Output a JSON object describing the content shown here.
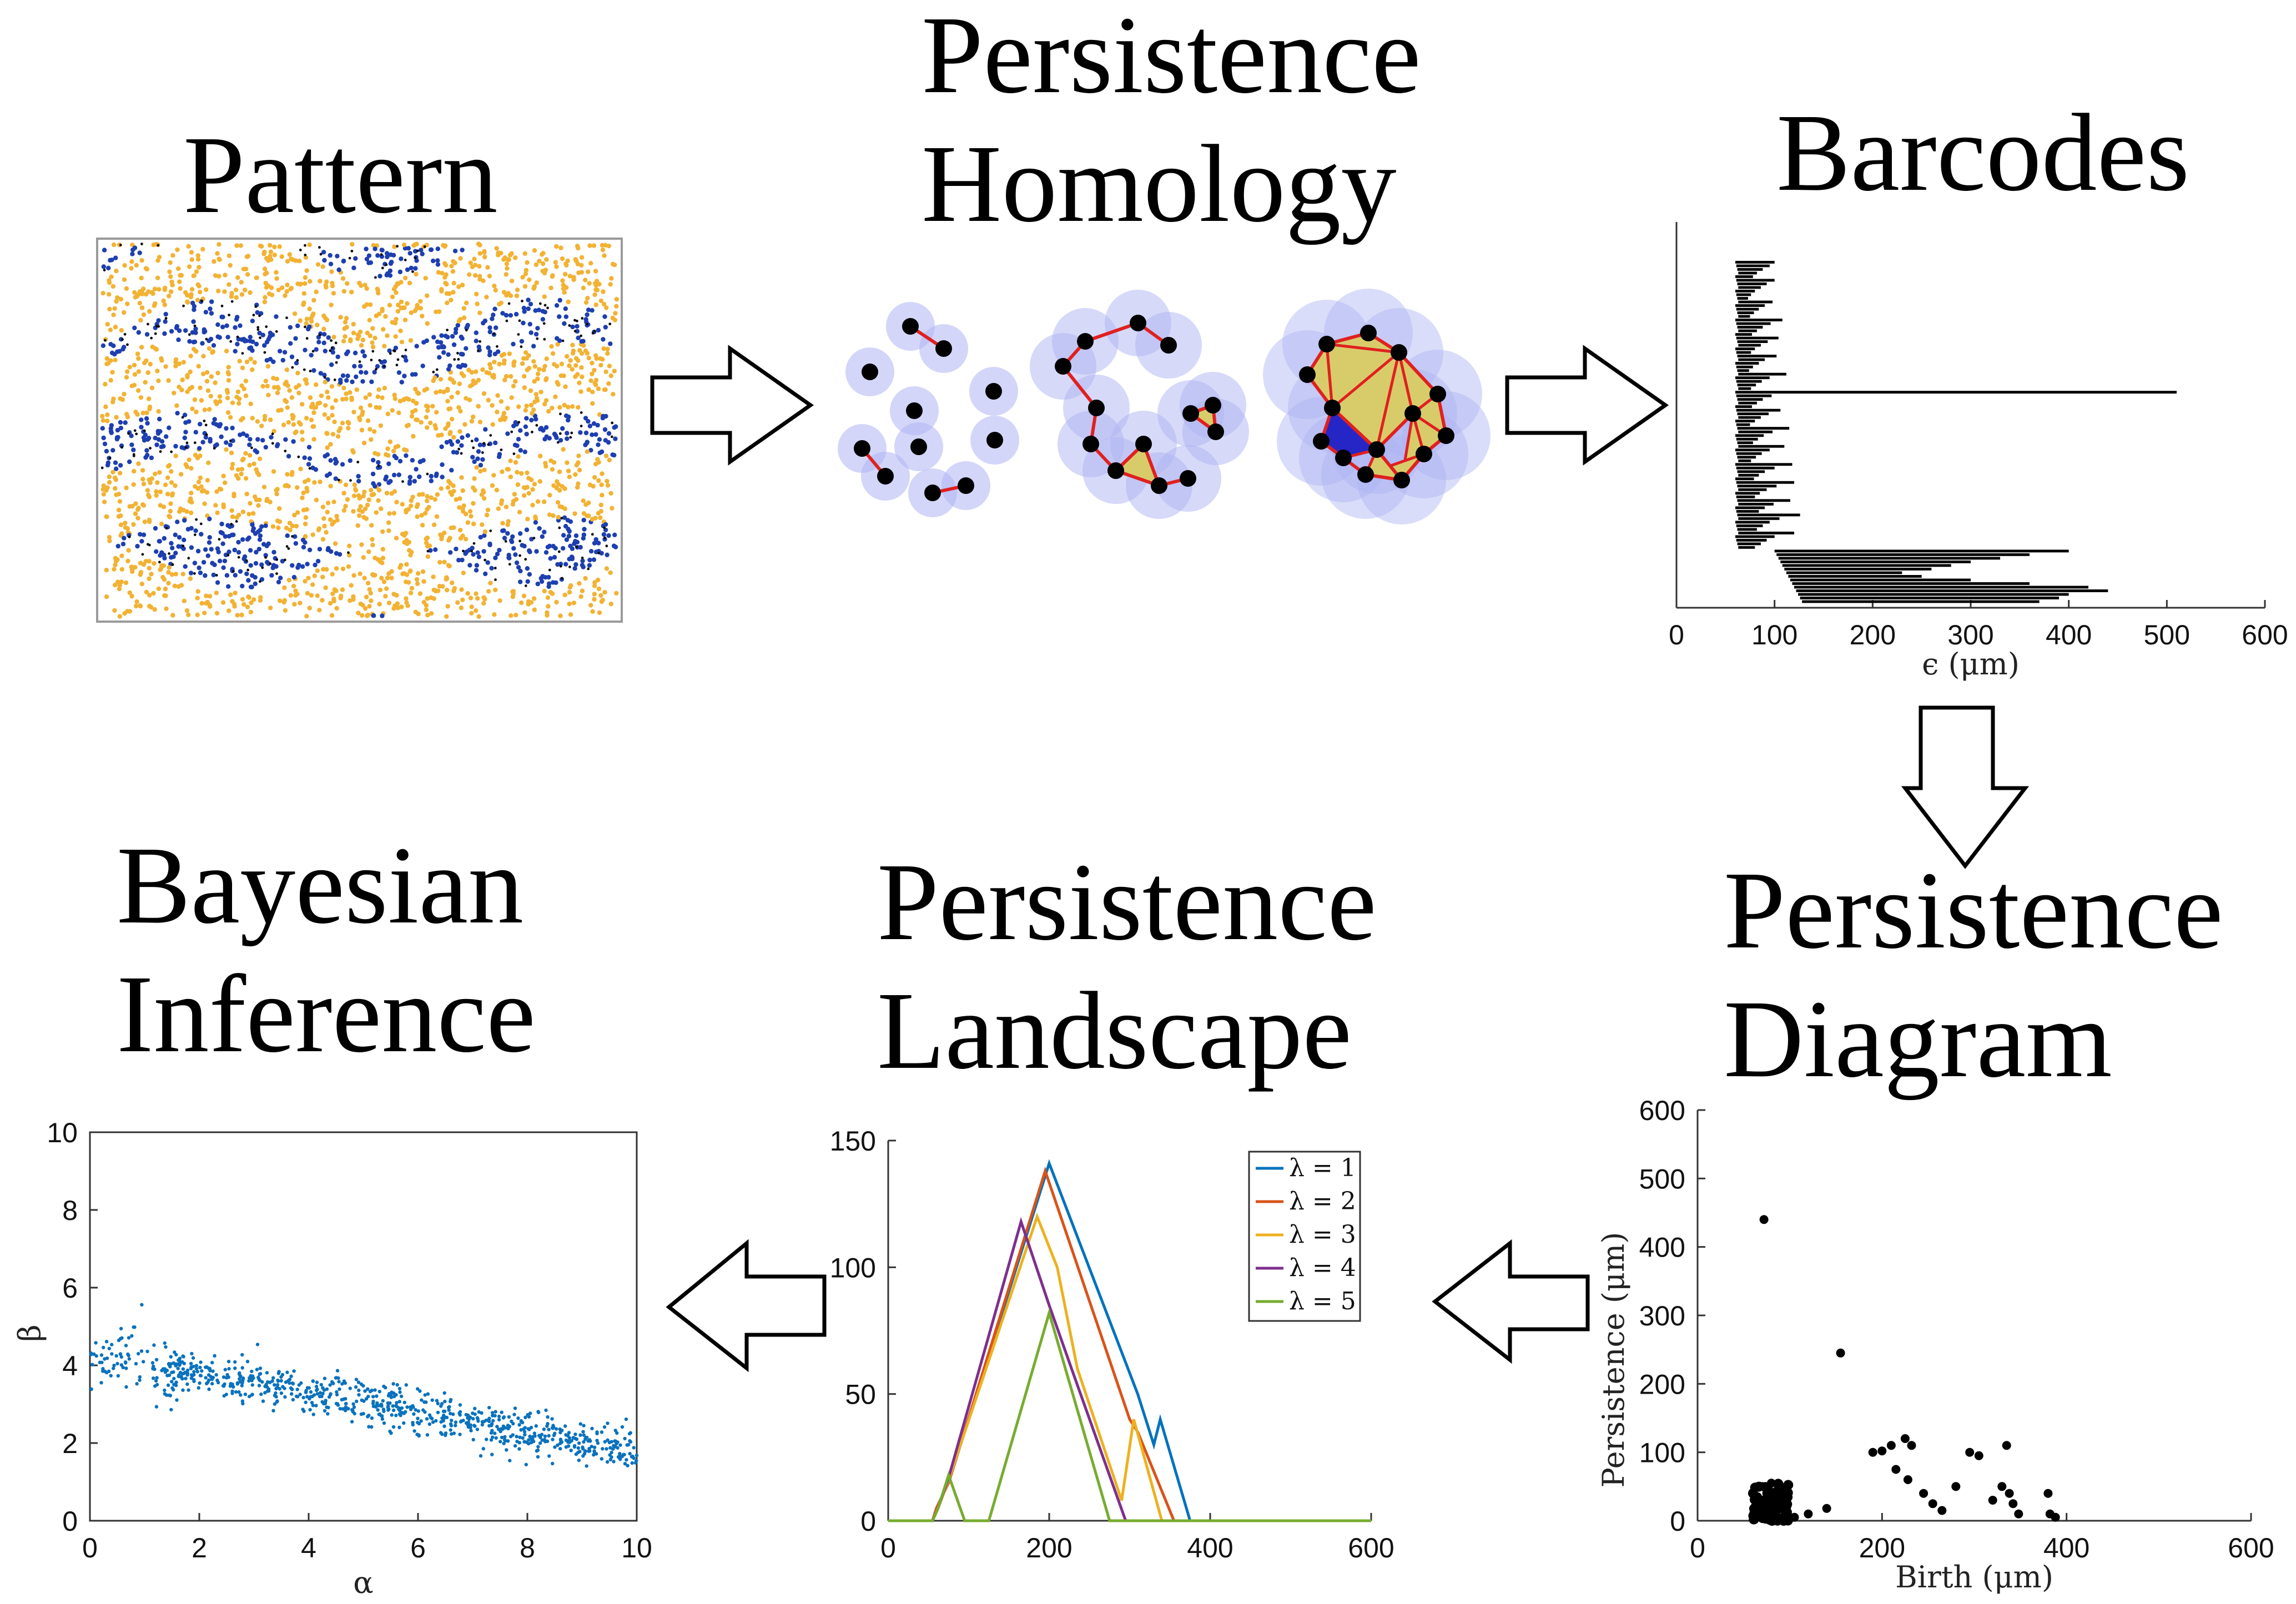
{
  "stages": {
    "pattern": {
      "lines": [
        "Pattern"
      ]
    },
    "homology": {
      "lines": [
        "Persistence",
        "Homology"
      ]
    },
    "barcodes": {
      "lines": [
        "Barcodes"
      ]
    },
    "diagram": {
      "lines": [
        "Persistence",
        "Diagram"
      ]
    },
    "landscape": {
      "lines": [
        "Persistence",
        "Landscape"
      ]
    },
    "inference": {
      "lines": [
        "Bayesian",
        "Inference"
      ]
    }
  },
  "colors": {
    "agent_blue": "#1e3fb0",
    "agent_yellow": "#f2b233",
    "ball": "#aeb4f2",
    "edge": "#e02020",
    "triangle": "#d8cc6a",
    "scatter": "#0a72bd",
    "series": [
      "#0072bd",
      "#d95319",
      "#edb120",
      "#7e2f8e",
      "#77ac30"
    ]
  },
  "chart_data": [
    {
      "type": "bar",
      "name": "barcodes",
      "orientation": "horizontal",
      "xlabel": "ϵ   (μm)",
      "xlim": [
        0,
        600
      ],
      "xticks": [
        "0",
        "100",
        "200",
        "300",
        "400",
        "500",
        "600"
      ],
      "start": 60,
      "bar_ends": [
        100,
        95,
        88,
        82,
        78,
        100,
        92,
        86,
        80,
        76,
        73,
        98,
        90,
        84,
        79,
        75,
        108,
        96,
        88,
        82,
        77,
        104,
        93,
        86,
        80,
        76,
        102,
        90,
        84,
        78,
        74,
        112,
        95,
        87,
        81,
        76,
        510,
        97,
        88,
        82,
        77,
        106,
        94,
        86,
        80,
        75,
        115,
        98,
        89,
        83,
        78,
        110,
        95,
        87,
        81,
        76,
        118,
        100,
        90,
        84,
        79,
        120,
        102,
        92,
        85,
        80,
        116,
        99,
        90,
        84,
        126,
        105,
        95,
        88,
        82,
        120,
        100,
        92,
        86,
        80,
        400,
        360,
        330,
        300,
        280,
        260,
        230,
        250,
        300,
        360,
        420,
        440,
        400,
        390,
        370
      ],
      "long_bar_index": 36
    },
    {
      "type": "scatter",
      "name": "persistence-diagram",
      "xlabel": "Birth (μm)",
      "ylabel": "Persistence (μm)",
      "xlim": [
        0,
        600
      ],
      "ylim": [
        0,
        600
      ],
      "xticks": [
        "0",
        "200",
        "400",
        "600"
      ],
      "yticks": [
        "0",
        "100",
        "200",
        "300",
        "400",
        "500",
        "600"
      ],
      "points": [
        [
          72,
          440
        ],
        [
          155,
          245
        ],
        [
          190,
          100
        ],
        [
          200,
          102
        ],
        [
          210,
          110
        ],
        [
          225,
          120
        ],
        [
          232,
          110
        ],
        [
          215,
          75
        ],
        [
          228,
          60
        ],
        [
          245,
          40
        ],
        [
          255,
          25
        ],
        [
          265,
          15
        ],
        [
          280,
          50
        ],
        [
          295,
          100
        ],
        [
          305,
          95
        ],
        [
          320,
          30
        ],
        [
          330,
          50
        ],
        [
          335,
          110
        ],
        [
          338,
          40
        ],
        [
          342,
          25
        ],
        [
          348,
          10
        ],
        [
          380,
          40
        ],
        [
          382,
          10
        ],
        [
          388,
          5
        ],
        [
          140,
          18
        ],
        [
          120,
          10
        ],
        [
          105,
          5
        ],
        [
          95,
          8
        ],
        [
          85,
          12
        ],
        [
          78,
          30
        ],
        [
          70,
          50
        ],
        [
          68,
          20
        ],
        [
          75,
          40
        ],
        [
          80,
          55
        ],
        [
          65,
          35
        ],
        [
          90,
          20
        ]
      ],
      "cluster": {
        "x": [
          60,
          100
        ],
        "y": [
          0,
          55
        ],
        "count": 90
      }
    },
    {
      "type": "line",
      "name": "persistence-landscape",
      "xlim": [
        0,
        600
      ],
      "ylim": [
        0,
        150
      ],
      "xticks": [
        "0",
        "200",
        "400",
        "600"
      ],
      "yticks": [
        "0",
        "50",
        "100",
        "150"
      ],
      "series": [
        {
          "name": "λ = 1",
          "points": [
            [
              0,
              0
            ],
            [
              55,
              0
            ],
            [
              60,
              5
            ],
            [
              75,
              15
            ],
            [
              200,
              141
            ],
            [
              310,
              50
            ],
            [
              330,
              30
            ],
            [
              338,
              40
            ],
            [
              375,
              0
            ],
            [
              600,
              0
            ]
          ]
        },
        {
          "name": "λ = 2",
          "points": [
            [
              0,
              0
            ],
            [
              55,
              0
            ],
            [
              60,
              5
            ],
            [
              75,
              15
            ],
            [
              195,
              138
            ],
            [
              300,
              40
            ],
            [
              310,
              35
            ],
            [
              355,
              0
            ],
            [
              600,
              0
            ]
          ]
        },
        {
          "name": "λ = 3",
          "points": [
            [
              0,
              0
            ],
            [
              55,
              0
            ],
            [
              62,
              5
            ],
            [
              75,
              16
            ],
            [
              185,
              120
            ],
            [
              210,
              100
            ],
            [
              235,
              60
            ],
            [
              290,
              8
            ],
            [
              305,
              40
            ],
            [
              340,
              0
            ],
            [
              600,
              0
            ]
          ]
        },
        {
          "name": "λ = 4",
          "points": [
            [
              0,
              0
            ],
            [
              55,
              0
            ],
            [
              62,
              5
            ],
            [
              75,
              17
            ],
            [
              165,
              118
            ],
            [
              200,
              85
            ],
            [
              230,
              58
            ],
            [
              295,
              0
            ],
            [
              600,
              0
            ]
          ]
        },
        {
          "name": "λ = 5",
          "points": [
            [
              0,
              0
            ],
            [
              55,
              0
            ],
            [
              62,
              5
            ],
            [
              75,
              18
            ],
            [
              95,
              0
            ],
            [
              125,
              0
            ],
            [
              200,
              82
            ],
            [
              275,
              0
            ],
            [
              600,
              0
            ]
          ]
        }
      ]
    },
    {
      "type": "scatter",
      "name": "posterior-samples",
      "xlabel": "α",
      "ylabel": "β",
      "xlim": [
        0,
        10
      ],
      "ylim": [
        0,
        10
      ],
      "xticks": [
        "0",
        "2",
        "4",
        "6",
        "8",
        "10"
      ],
      "yticks": [
        "0",
        "2",
        "4",
        "6",
        "8",
        "10"
      ],
      "trend": {
        "intercept": 4.3,
        "slope": -0.25,
        "spread": 0.28
      },
      "x_range": [
        0,
        10
      ],
      "count": 850
    }
  ]
}
